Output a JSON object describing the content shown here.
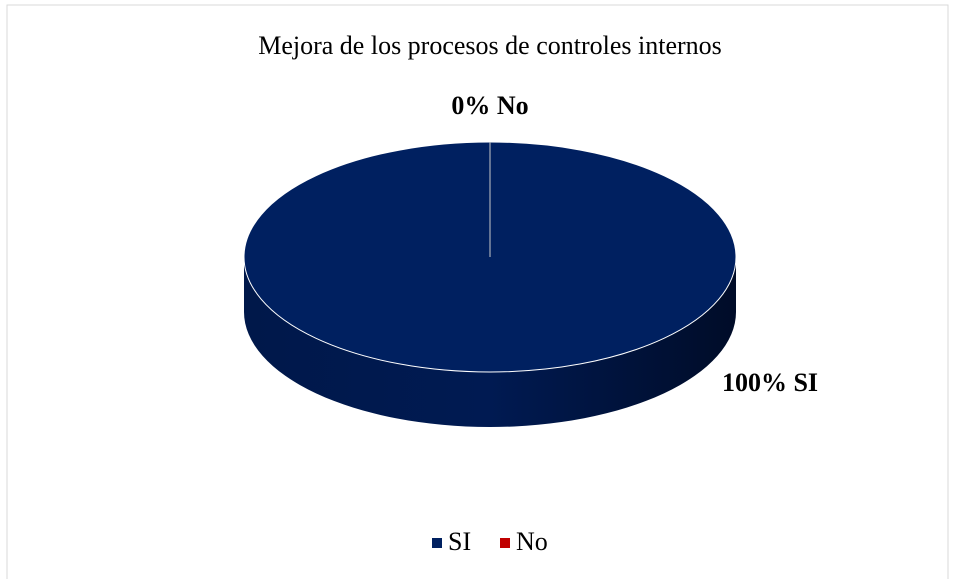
{
  "chart_data": {
    "type": "pie",
    "title": "Mejora de los procesos de controles internos",
    "categories": [
      "SI",
      "No"
    ],
    "values": [
      100,
      0
    ],
    "value_labels": [
      "100% SI",
      "0% No"
    ],
    "colors": [
      "#002060",
      "#c00000"
    ],
    "legend": "bottom"
  }
}
